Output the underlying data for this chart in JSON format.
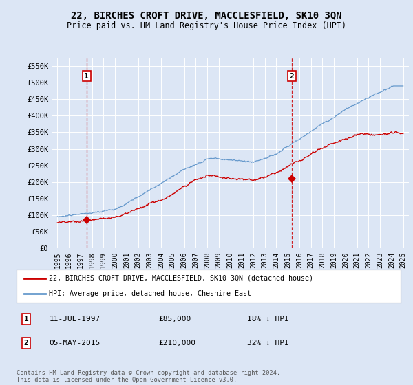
{
  "title": "22, BIRCHES CROFT DRIVE, MACCLESFIELD, SK10 3QN",
  "subtitle": "Price paid vs. HM Land Registry's House Price Index (HPI)",
  "background_color": "#dce6f5",
  "plot_bg_color": "#dce6f5",
  "red_line_label": "22, BIRCHES CROFT DRIVE, MACCLESFIELD, SK10 3QN (detached house)",
  "blue_line_label": "HPI: Average price, detached house, Cheshire East",
  "footnote": "Contains HM Land Registry data © Crown copyright and database right 2024.\nThis data is licensed under the Open Government Licence v3.0.",
  "sale1": {
    "label": "1",
    "date": "11-JUL-1997",
    "price": 85000,
    "pct": "18% ↓ HPI",
    "x": 1997.53
  },
  "sale2": {
    "label": "2",
    "date": "05-MAY-2015",
    "price": 210000,
    "pct": "32% ↓ HPI",
    "x": 2015.35
  },
  "ylim": [
    0,
    575000
  ],
  "xlim": [
    1994.5,
    2025.5
  ],
  "yticks": [
    0,
    50000,
    100000,
    150000,
    200000,
    250000,
    300000,
    350000,
    400000,
    450000,
    500000,
    550000
  ],
  "ytick_labels": [
    "£0",
    "£50K",
    "£100K",
    "£150K",
    "£200K",
    "£250K",
    "£300K",
    "£350K",
    "£400K",
    "£450K",
    "£500K",
    "£550K"
  ],
  "xticks": [
    1995,
    1996,
    1997,
    1998,
    1999,
    2000,
    2001,
    2002,
    2003,
    2004,
    2005,
    2006,
    2007,
    2008,
    2009,
    2010,
    2011,
    2012,
    2013,
    2014,
    2015,
    2016,
    2017,
    2018,
    2019,
    2020,
    2021,
    2022,
    2023,
    2024,
    2025
  ],
  "red_color": "#cc0000",
  "blue_color": "#6699cc",
  "grid_color": "#ffffff"
}
